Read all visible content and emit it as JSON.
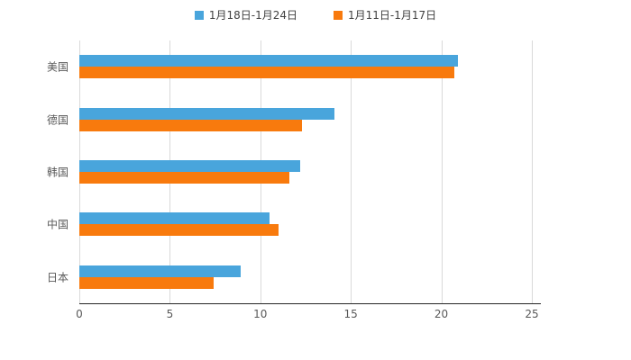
{
  "chart_data": {
    "type": "bar",
    "orientation": "horizontal",
    "title": "",
    "categories": [
      "美国",
      "德国",
      "韩国",
      "中国",
      "日本"
    ],
    "series": [
      {
        "name": "1月18日-1月24日",
        "color": "#49a5dc",
        "values": [
          20.9,
          14.1,
          12.2,
          10.5,
          8.9
        ]
      },
      {
        "name": "1月11日-1月17日",
        "color": "#f87a0d",
        "values": [
          20.7,
          12.3,
          11.6,
          11.0,
          7.4
        ]
      }
    ],
    "xticks": [
      0,
      5,
      10,
      15,
      20,
      25
    ],
    "xlim": [
      0,
      25.5
    ],
    "grid": true,
    "legend_position": "top",
    "axis_line_color": "#262626",
    "gridline_color": "#d9d9d9"
  }
}
